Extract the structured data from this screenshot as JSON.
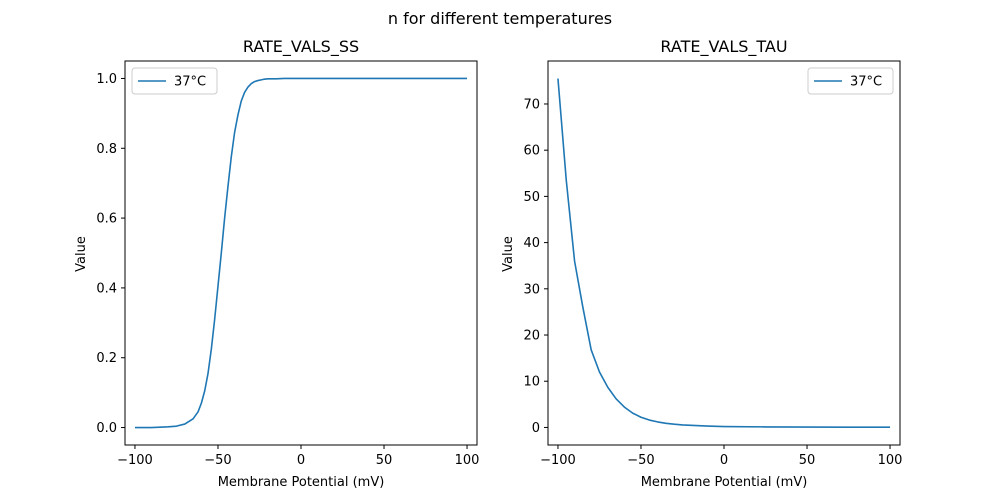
{
  "figure": {
    "suptitle": "n for different temperatures"
  },
  "colors": {
    "series": "#1f77b4",
    "axes": "#000000",
    "legend_border": "#cccccc"
  },
  "chart_data": [
    {
      "type": "line",
      "title": "RATE_VALS_SS",
      "xlabel": "Membrane Potential (mV)",
      "ylabel": "Value",
      "xlim": [
        -106,
        106
      ],
      "ylim": [
        -0.05,
        1.05
      ],
      "xticks": [
        -100,
        -50,
        0,
        50,
        100
      ],
      "xtick_labels": [
        "−100",
        "−50",
        "0",
        "50",
        "100"
      ],
      "yticks": [
        0.0,
        0.2,
        0.4,
        0.6,
        0.8,
        1.0
      ],
      "ytick_labels": [
        "0.0",
        "0.2",
        "0.4",
        "0.6",
        "0.8",
        "1.0"
      ],
      "grid": false,
      "legend": "upper-left",
      "series": [
        {
          "name": "37°C",
          "x": [
            -100,
            -90,
            -80,
            -75,
            -70,
            -65,
            -62,
            -60,
            -58,
            -56,
            -54,
            -52,
            -50,
            -48,
            -46,
            -44,
            -42,
            -40,
            -38,
            -36,
            -34,
            -32,
            -30,
            -28,
            -26,
            -24,
            -22,
            -20,
            -15,
            -10,
            0,
            25,
            50,
            75,
            100
          ],
          "y": [
            0.0,
            0.0,
            0.002,
            0.004,
            0.01,
            0.025,
            0.045,
            0.07,
            0.105,
            0.155,
            0.225,
            0.31,
            0.405,
            0.5,
            0.6,
            0.69,
            0.775,
            0.845,
            0.895,
            0.935,
            0.96,
            0.975,
            0.985,
            0.991,
            0.994,
            0.996,
            0.998,
            0.999,
            0.999,
            1.0,
            1.0,
            1.0,
            1.0,
            1.0,
            1.0
          ]
        }
      ]
    },
    {
      "type": "line",
      "title": "RATE_VALS_TAU",
      "xlabel": "Membrane Potential (mV)",
      "ylabel": "Value",
      "xlim": [
        -106,
        106
      ],
      "ylim": [
        -3.8,
        79.3
      ],
      "xticks": [
        -100,
        -50,
        0,
        50,
        100
      ],
      "xtick_labels": [
        "−100",
        "−50",
        "0",
        "50",
        "100"
      ],
      "yticks": [
        0,
        10,
        20,
        30,
        40,
        50,
        60,
        70
      ],
      "ytick_labels": [
        "0",
        "10",
        "20",
        "30",
        "40",
        "50",
        "60",
        "70"
      ],
      "grid": false,
      "legend": "upper-right",
      "series": [
        {
          "name": "37°C",
          "x": [
            -100,
            -95,
            -90,
            -85,
            -80,
            -75,
            -70,
            -65,
            -60,
            -55,
            -50,
            -45,
            -40,
            -35,
            -30,
            -25,
            -20,
            -10,
            0,
            25,
            50,
            75,
            100
          ],
          "y": [
            75.5,
            53.5,
            36.0,
            26.0,
            16.8,
            12.0,
            8.7,
            6.2,
            4.4,
            3.1,
            2.2,
            1.6,
            1.2,
            0.9,
            0.7,
            0.55,
            0.45,
            0.3,
            0.2,
            0.12,
            0.08,
            0.06,
            0.05
          ]
        }
      ]
    }
  ]
}
